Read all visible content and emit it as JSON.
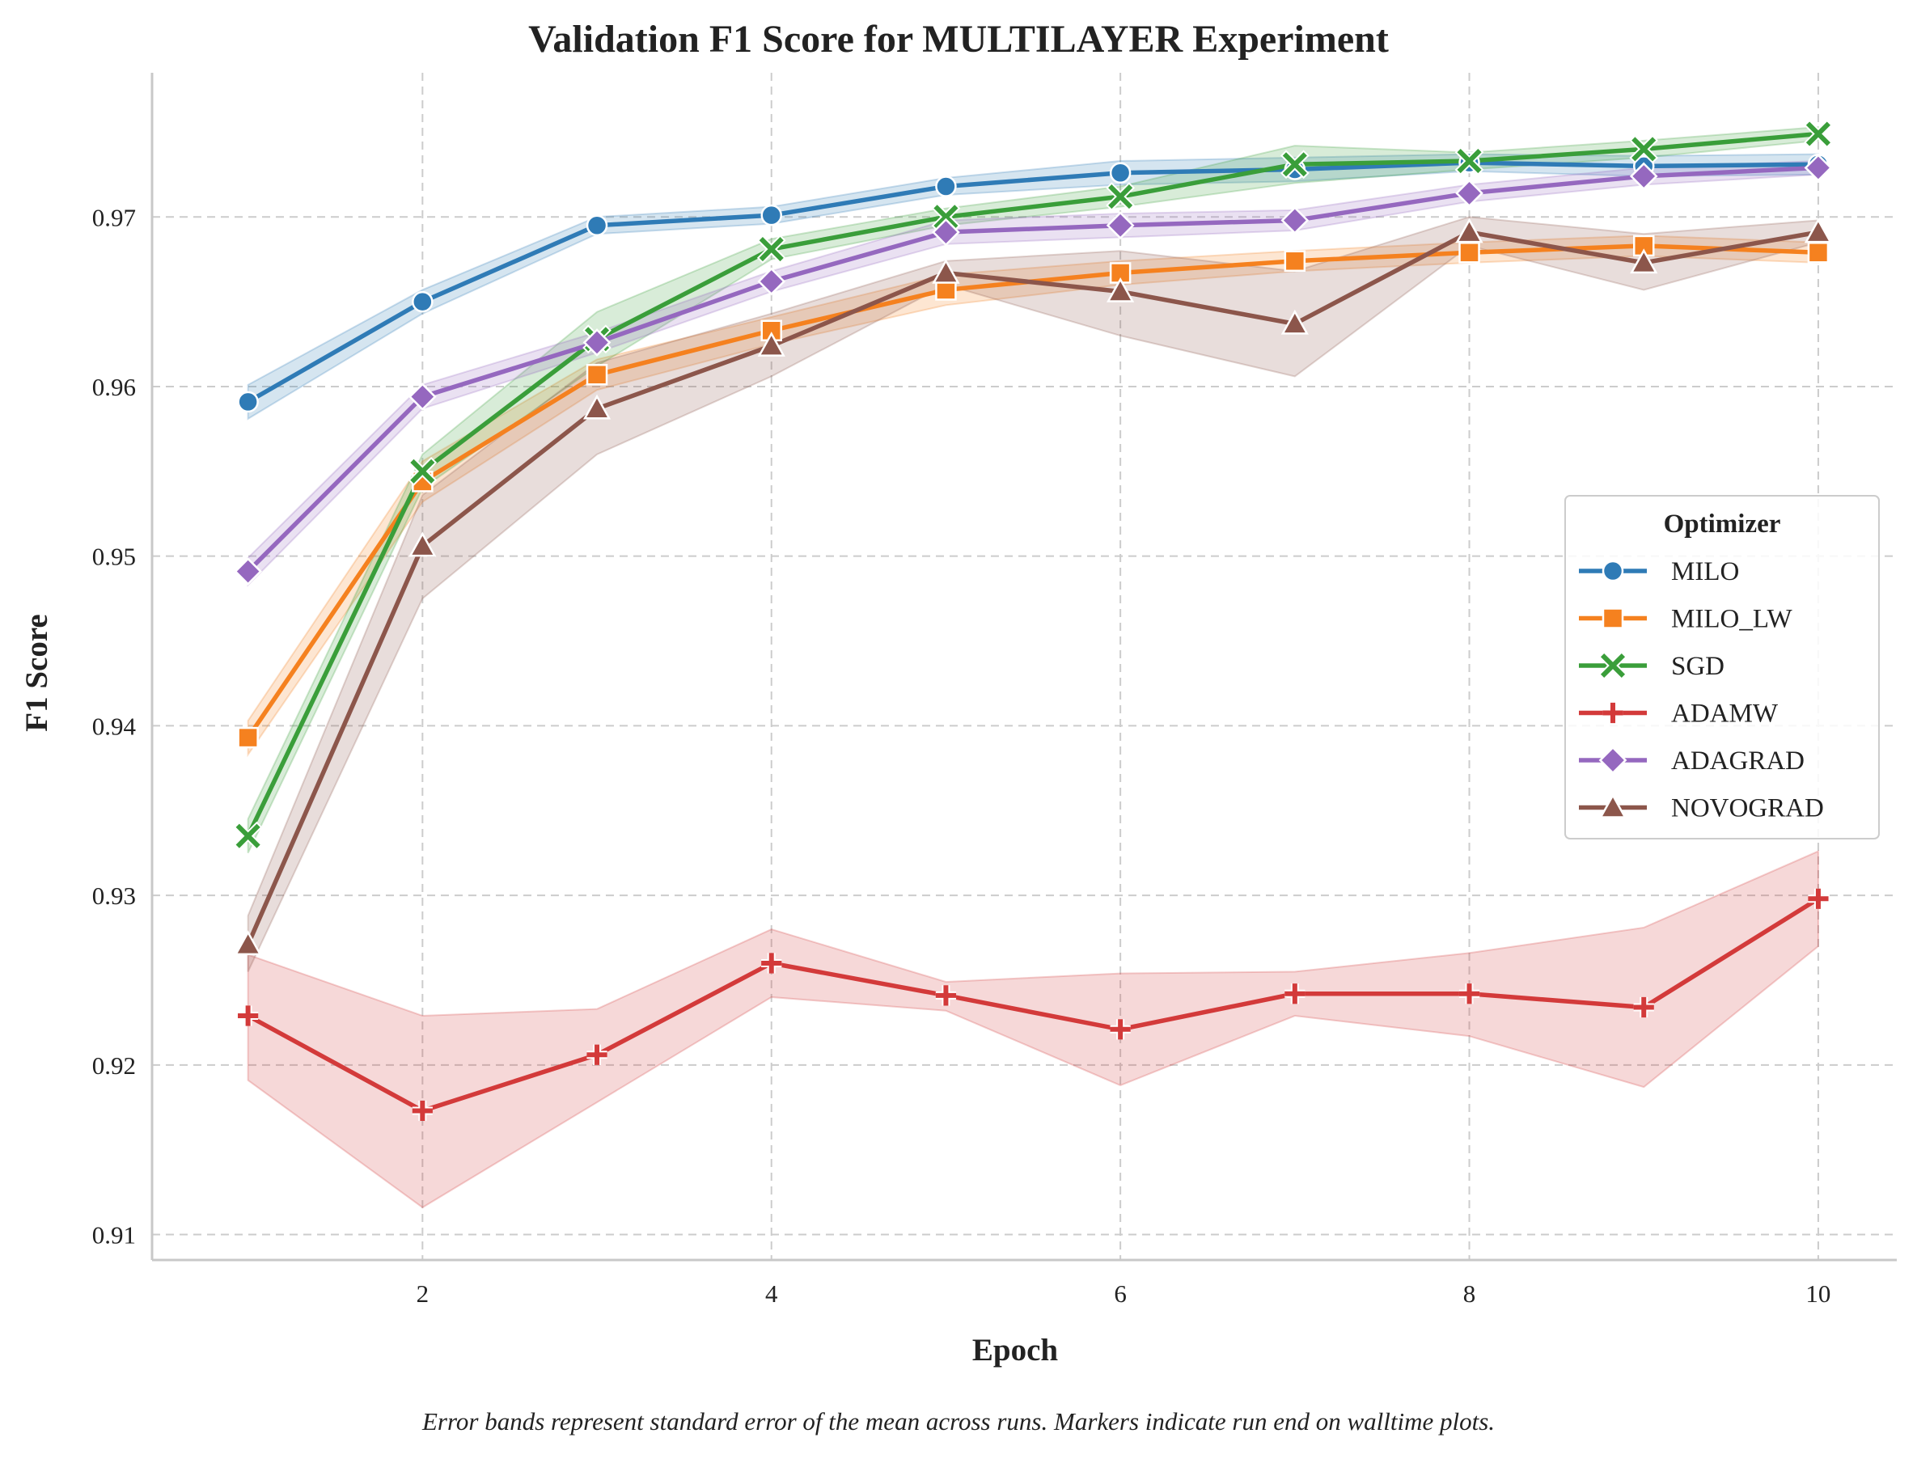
{
  "chart_data": {
    "type": "line",
    "title": "Validation F1 Score for MULTILAYER Experiment",
    "xlabel": "Epoch",
    "ylabel": "F1 Score",
    "x": [
      1,
      2,
      3,
      4,
      5,
      6,
      7,
      8,
      9,
      10
    ],
    "xlim": [
      0.45,
      10.45
    ],
    "ylim": [
      0.9085,
      0.9785
    ],
    "xticks": [
      2,
      4,
      6,
      8,
      10
    ],
    "yticks": [
      0.91,
      0.92,
      0.93,
      0.94,
      0.95,
      0.96,
      0.97
    ],
    "ytick_labels": [
      "0.91",
      "0.92",
      "0.93",
      "0.94",
      "0.95",
      "0.96",
      "0.97"
    ],
    "xtick_labels": [
      "2",
      "4",
      "6",
      "8",
      "10"
    ],
    "grid": true,
    "legend_title": "Optimizer",
    "legend_position": "center-right",
    "caption": "Error bands represent standard error of the mean across runs. Markers indicate run end on walltime plots.",
    "series": [
      {
        "name": "MILO",
        "color": "#2f7bb6",
        "marker": "circle",
        "values": [
          0.9591,
          0.965,
          0.9695,
          0.9701,
          0.9718,
          0.9726,
          0.9728,
          0.9732,
          0.973,
          0.9731
        ],
        "lower": [
          0.9581,
          0.9643,
          0.969,
          0.9696,
          0.9713,
          0.9719,
          0.9721,
          0.9727,
          0.9724,
          0.9725
        ],
        "upper": [
          0.9601,
          0.9657,
          0.97,
          0.9706,
          0.9723,
          0.9733,
          0.9735,
          0.9737,
          0.9736,
          0.9737
        ]
      },
      {
        "name": "MILO_LW",
        "color": "#f5811f",
        "marker": "square",
        "values": [
          0.9393,
          0.9544,
          0.9607,
          0.9633,
          0.9657,
          0.9667,
          0.9674,
          0.9679,
          0.9683,
          0.9679
        ],
        "lower": [
          0.9383,
          0.9532,
          0.9598,
          0.9625,
          0.9648,
          0.966,
          0.9668,
          0.9673,
          0.9677,
          0.9673
        ],
        "upper": [
          0.9403,
          0.9556,
          0.9616,
          0.9641,
          0.9666,
          0.9674,
          0.968,
          0.9685,
          0.9689,
          0.9685
        ]
      },
      {
        "name": "SGD",
        "color": "#3a9e3a",
        "marker": "x",
        "values": [
          0.9335,
          0.955,
          0.9628,
          0.9681,
          0.97,
          0.9712,
          0.9731,
          0.9733,
          0.974,
          0.9749
        ],
        "lower": [
          0.9325,
          0.954,
          0.9612,
          0.9675,
          0.9695,
          0.9706,
          0.972,
          0.9728,
          0.9735,
          0.9745
        ],
        "upper": [
          0.9345,
          0.956,
          0.9644,
          0.9687,
          0.9705,
          0.9718,
          0.9742,
          0.9738,
          0.9745,
          0.9753
        ]
      },
      {
        "name": "ADAMW",
        "color": "#d33a3a",
        "marker": "plus",
        "values": [
          0.9229,
          0.9173,
          0.9206,
          0.926,
          0.9241,
          0.9221,
          0.9242,
          0.9242,
          0.9234,
          0.9298
        ],
        "lower": [
          0.9191,
          0.9116,
          0.9178,
          0.924,
          0.9232,
          0.9188,
          0.9229,
          0.9217,
          0.9187,
          0.927
        ],
        "upper": [
          0.9265,
          0.9229,
          0.9233,
          0.928,
          0.9249,
          0.9254,
          0.9255,
          0.9266,
          0.9281,
          0.9326
        ]
      },
      {
        "name": "ADAGRAD",
        "color": "#9568bf",
        "marker": "diamond",
        "values": [
          0.9491,
          0.9594,
          0.9626,
          0.9662,
          0.9691,
          0.9695,
          0.9698,
          0.9714,
          0.9724,
          0.9729
        ],
        "lower": [
          0.9483,
          0.9587,
          0.962,
          0.9656,
          0.9684,
          0.9688,
          0.9692,
          0.9709,
          0.9719,
          0.9725
        ],
        "upper": [
          0.9499,
          0.9601,
          0.9632,
          0.9668,
          0.9698,
          0.9702,
          0.9704,
          0.9719,
          0.9729,
          0.9733
        ]
      },
      {
        "name": "NOVOGRAD",
        "color": "#8c564b",
        "marker": "triangle",
        "values": [
          0.9271,
          0.9506,
          0.9587,
          0.9624,
          0.9667,
          0.9656,
          0.9637,
          0.9691,
          0.9673,
          0.9691
        ],
        "lower": [
          0.9255,
          0.9475,
          0.956,
          0.9606,
          0.966,
          0.963,
          0.9606,
          0.9683,
          0.9657,
          0.9685
        ],
        "upper": [
          0.9288,
          0.9536,
          0.9614,
          0.9643,
          0.9674,
          0.968,
          0.9668,
          0.97,
          0.969,
          0.9698
        ]
      }
    ]
  }
}
